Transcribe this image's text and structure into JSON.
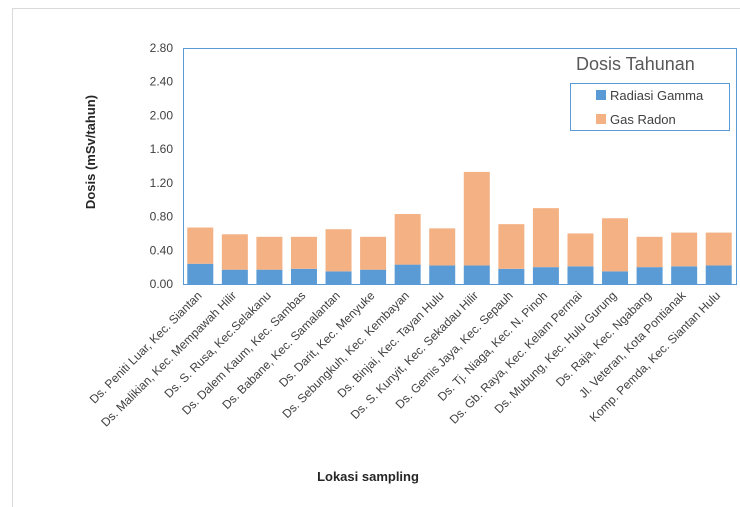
{
  "chart_data": {
    "type": "bar",
    "stacked": true,
    "title": "",
    "legend_title": "Dosis Tahunan",
    "xlabel": "Lokasi sampling",
    "ylabel": "Dosis (mSv/tahun)",
    "ylim": [
      0,
      2.8
    ],
    "yticks": [
      "0.00",
      "0.40",
      "0.80",
      "1.20",
      "1.60",
      "2.00",
      "2.40",
      "2.80"
    ],
    "grid": false,
    "legend_position": "top-right",
    "categories": [
      "Ds. Peniti Luar, Kec. Siantan",
      "Ds. Malikian, Kec. Mempawah Hilir",
      "Ds. S. Rusa, Kec.Selakanu",
      "Ds. Dalem Kaum, Kec. Sambas",
      "Ds. Babane, Kec. Samalantan",
      "Ds. Darit, Kec. Menyuke",
      "Ds. Sebungkuh, Kec. Kembayan",
      "Ds. Binjai, Kec. Tayan Hulu",
      "Ds. S. Kunyit, Kec. Sekadau Hilir",
      "Ds. Gemis Jaya, Kec. Sepauh",
      "Ds. Tj. Niaga, Kec. N. Pinoh",
      "Ds. Gb. Raya, Kec. Kelam Permai",
      "Ds. Mubung, Kec. Hulu Gurung",
      "Ds. Raja, Kec. Ngabang",
      "Jl. Veteran, Kota Pontianak",
      "Komp. Pemda, Kec. Siantan Hulu"
    ],
    "series": [
      {
        "name": "Radiasi Gamma",
        "color": "#5b9bd5",
        "values": [
          0.24,
          0.17,
          0.17,
          0.18,
          0.15,
          0.17,
          0.23,
          0.22,
          0.22,
          0.18,
          0.2,
          0.21,
          0.15,
          0.2,
          0.21,
          0.22
        ]
      },
      {
        "name": "Gas Radon",
        "color": "#f4b183",
        "values": [
          0.43,
          0.42,
          0.39,
          0.38,
          0.5,
          0.39,
          0.6,
          0.44,
          1.11,
          0.53,
          0.7,
          0.39,
          0.63,
          0.36,
          0.4,
          0.39
        ]
      }
    ]
  }
}
